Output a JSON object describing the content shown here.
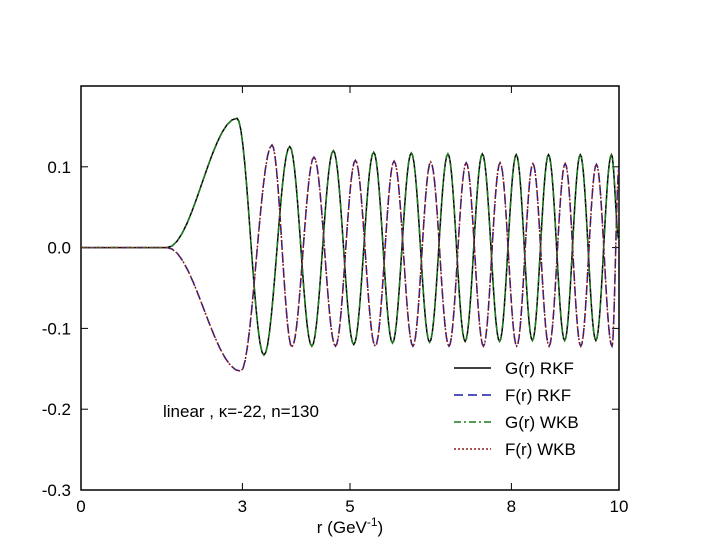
{
  "chart_data": {
    "type": "line",
    "title": "",
    "xlabel": "r (GeV",
    "xlabel_sup": "-1",
    "xlabel_close": ")",
    "ylabel": "",
    "xlim": [
      0,
      10
    ],
    "ylim": [
      -0.3,
      0.2
    ],
    "x_ticks": [
      0,
      3,
      5,
      8,
      10
    ],
    "x_tick_labels": [
      "0",
      "3",
      "5",
      "8",
      "10"
    ],
    "y_ticks": [
      -0.3,
      -0.2,
      -0.1,
      0.0,
      0.1
    ],
    "y_tick_labels": [
      "-0.3",
      "-0.2",
      "-0.1",
      "0.0",
      "0.1"
    ],
    "grid": false,
    "legend_position": "bottom-right",
    "annotation": "linear , κ=-22, n=130",
    "peaks": {
      "g_max": [
        {
          "x": 2.9,
          "y": 0.16
        },
        {
          "x": 3.88,
          "y": 0.125
        },
        {
          "x": 4.69,
          "y": 0.12
        },
        {
          "x": 5.44,
          "y": 0.118
        },
        {
          "x": 6.14,
          "y": 0.117
        },
        {
          "x": 6.82,
          "y": 0.116
        },
        {
          "x": 7.46,
          "y": 0.116
        },
        {
          "x": 8.09,
          "y": 0.115
        },
        {
          "x": 8.69,
          "y": 0.115
        },
        {
          "x": 9.28,
          "y": 0.115
        },
        {
          "x": 9.86,
          "y": 0.115
        }
      ],
      "g_min": [
        {
          "x": 3.4,
          "y": -0.133
        },
        {
          "x": 4.29,
          "y": -0.122
        },
        {
          "x": 5.07,
          "y": -0.12
        },
        {
          "x": 5.79,
          "y": -0.118
        },
        {
          "x": 6.48,
          "y": -0.117
        },
        {
          "x": 7.14,
          "y": -0.116
        },
        {
          "x": 7.78,
          "y": -0.116
        },
        {
          "x": 8.39,
          "y": -0.115
        },
        {
          "x": 8.99,
          "y": -0.115
        },
        {
          "x": 9.57,
          "y": -0.115
        }
      ],
      "f_min": [
        {
          "x": 2.97,
          "y": -0.153
        },
        {
          "x": 3.92,
          "y": -0.123
        },
        {
          "x": 4.73,
          "y": -0.122
        },
        {
          "x": 5.47,
          "y": -0.122
        },
        {
          "x": 6.17,
          "y": -0.122
        },
        {
          "x": 6.84,
          "y": -0.122
        },
        {
          "x": 7.48,
          "y": -0.122
        },
        {
          "x": 8.1,
          "y": -0.122
        },
        {
          "x": 8.7,
          "y": -0.122
        },
        {
          "x": 9.29,
          "y": -0.122
        },
        {
          "x": 9.87,
          "y": -0.122
        }
      ],
      "f_max": [
        {
          "x": 3.55,
          "y": 0.127
        },
        {
          "x": 4.33,
          "y": 0.112
        },
        {
          "x": 5.1,
          "y": 0.108
        },
        {
          "x": 5.82,
          "y": 0.107
        },
        {
          "x": 6.5,
          "y": 0.106
        },
        {
          "x": 7.16,
          "y": 0.105
        },
        {
          "x": 7.79,
          "y": 0.105
        },
        {
          "x": 8.4,
          "y": 0.104
        },
        {
          "x": 9.0,
          "y": 0.104
        },
        {
          "x": 9.58,
          "y": 0.103
        }
      ],
      "start_x": 1.6,
      "end": {
        "x": 10.0,
        "g": 0.01,
        "f": 0.098
      }
    },
    "series": [
      {
        "name": "G(r) RKF",
        "component": "G",
        "color": "#000000",
        "dash": "",
        "width": 1.5
      },
      {
        "name": "F(r) RKF",
        "component": "F",
        "color": "#1a1aa6",
        "dash": "9,5",
        "width": 1.5
      },
      {
        "name": "G(r) WKB",
        "component": "G",
        "color": "#1d7a1d",
        "dash": "7,3,2,3",
        "width": 1.5
      },
      {
        "name": "F(r) WKB",
        "component": "F",
        "color": "#8b1a1a",
        "dash": "2,2",
        "width": 1.5
      }
    ]
  },
  "colors": {
    "background": "#ffffff",
    "axis": "#000000"
  }
}
